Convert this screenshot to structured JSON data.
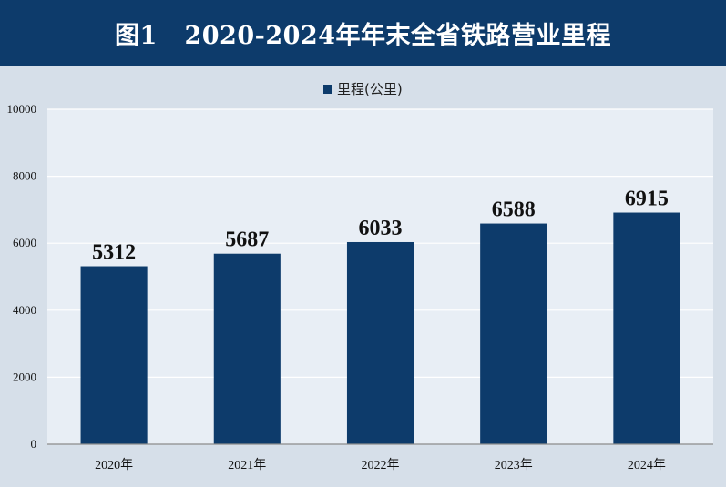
{
  "header": {
    "title": "图1   2020-2024年年末全省铁路营业里程"
  },
  "colors": {
    "header_bg": "#0d3b6b",
    "bar": "#0d3b6b",
    "plot_bg": "#e8eef5",
    "page_bg": "#d6dfe9"
  },
  "chart_data": {
    "type": "bar",
    "title": "图1   2020-2024年年末全省铁路营业里程",
    "categories": [
      "2020年",
      "2021年",
      "2022年",
      "2023年",
      "2024年"
    ],
    "series": [
      {
        "name": "里程(公里)",
        "values": [
          5312,
          5687,
          6033,
          6588,
          6915
        ]
      }
    ],
    "data_labels": [
      "5312",
      "5687",
      "6033",
      "6588",
      "6915"
    ],
    "ylim": [
      0,
      10000
    ],
    "yticks": [
      0,
      2000,
      4000,
      6000,
      8000,
      10000
    ],
    "ytick_labels": [
      "0",
      "2000",
      "4000",
      "6000",
      "8000",
      "10000"
    ],
    "grid": true,
    "legend": "top-center"
  }
}
